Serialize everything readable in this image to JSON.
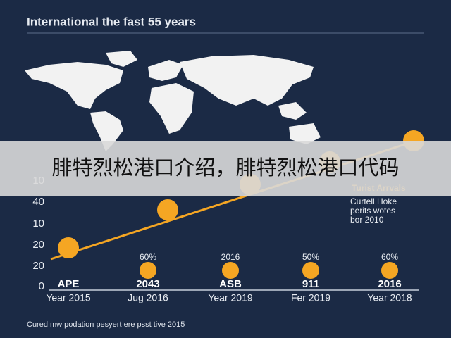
{
  "header": {
    "title": "International the fast 55 years"
  },
  "overlay": {
    "banner": "腓特烈松港口介绍，腓特烈松港口代码"
  },
  "axis": {
    "y_labels": [
      "10",
      "40",
      "10",
      "20",
      "20",
      "0"
    ],
    "x_labels": [
      "Year 2015",
      "Jug 2016",
      "Year 2019",
      "Fer 2019",
      "Year 2018"
    ]
  },
  "legend": {
    "title": "Turist Arrvals",
    "lines": [
      "Curtell Hoke",
      "perits wotes",
      "bor 2010"
    ]
  },
  "markers": {
    "tops": [
      "60%",
      "2016",
      "50%",
      "60%"
    ],
    "labels": [
      "APE",
      "2043",
      "ASB",
      "911",
      "2016"
    ]
  },
  "footnote": "Cured mw podation pesyert ere psst tive 2015"
}
